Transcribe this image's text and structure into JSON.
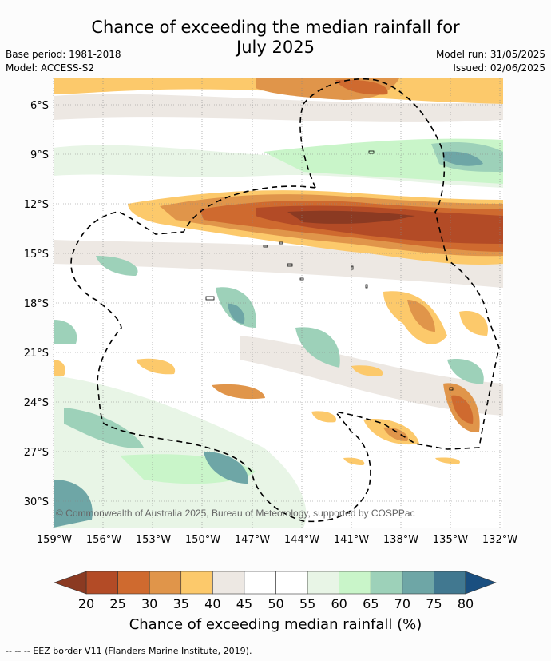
{
  "title_line1": "Chance of exceeding the median rainfall for",
  "title_line2": "July 2025",
  "base_period": "Base period: 1981-2018",
  "model": "Model: ACCESS-S2",
  "model_run": "Model run: 31/05/2025",
  "issued": "Issued: 02/06/2025",
  "copyright": "© Commonwealth of Australia 2025, Bureau of Meteorology, supported by COSPPac",
  "lat_labels": [
    "6°S",
    "9°S",
    "12°S",
    "15°S",
    "18°S",
    "21°S",
    "24°S",
    "27°S",
    "30°S"
  ],
  "lon_labels": [
    "159°W",
    "156°W",
    "153°W",
    "150°W",
    "147°W",
    "144°W",
    "141°W",
    "138°W",
    "135°W",
    "132°W"
  ],
  "colorbar": {
    "ticks": [
      "20",
      "25",
      "30",
      "35",
      "40",
      "45",
      "50",
      "55",
      "60",
      "65",
      "70",
      "75",
      "80"
    ],
    "title": "Chance of exceeding median rainfall (%)",
    "colors": [
      "#8b3a22",
      "#b34b26",
      "#cf6a2f",
      "#e0954a",
      "#fcc96b",
      "#ede8e3",
      "#ffffff",
      "#ffffff",
      "#e8f5e6",
      "#c9f5c9",
      "#9dd1b9",
      "#6ea6a6",
      "#417890",
      "#1a4f80"
    ]
  },
  "footnote": "--  --  -- EEZ border V11 (Flanders Marine Institute, 2019)."
}
